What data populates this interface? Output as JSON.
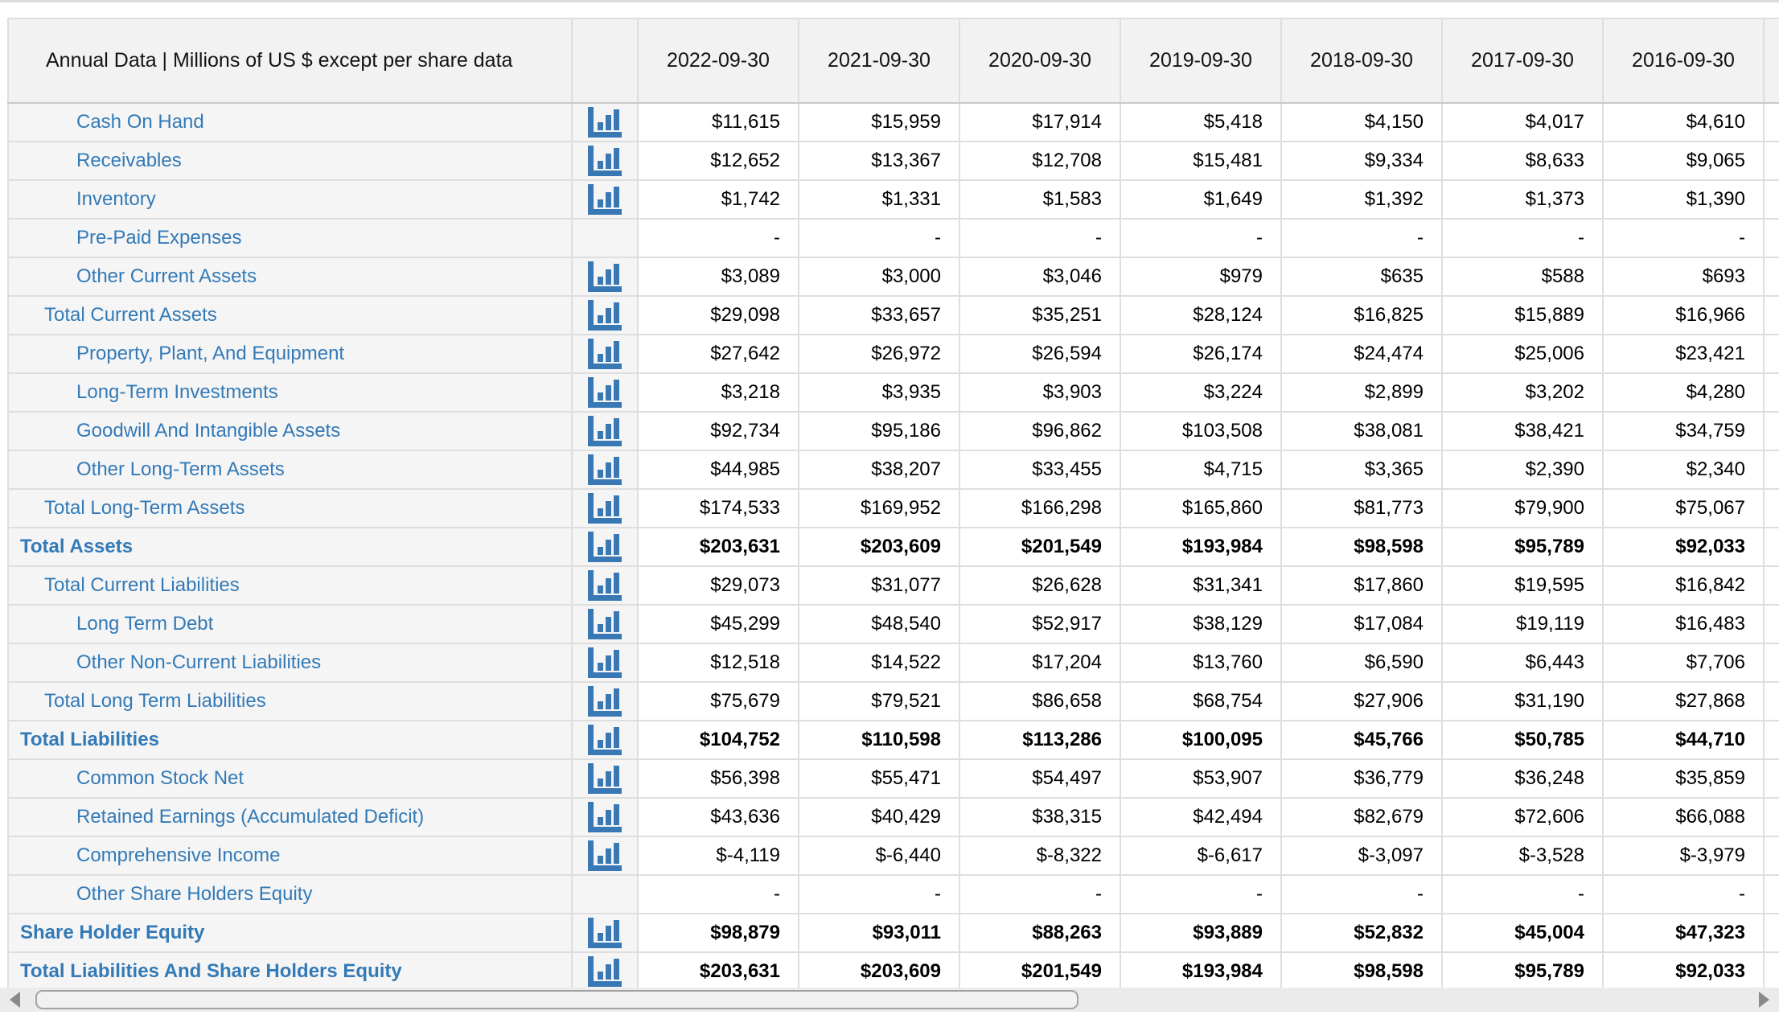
{
  "table": {
    "corner_header": "Annual Data | Millions of US $ except per share data",
    "columns": [
      "2022-09-30",
      "2021-09-30",
      "2020-09-30",
      "2019-09-30",
      "2018-09-30",
      "2017-09-30",
      "2016-09-30"
    ],
    "rows": [
      {
        "label": "Cash On Hand",
        "indent": 2,
        "bold": false,
        "icon": true,
        "values": [
          "$11,615",
          "$15,959",
          "$17,914",
          "$5,418",
          "$4,150",
          "$4,017",
          "$4,610"
        ]
      },
      {
        "label": "Receivables",
        "indent": 2,
        "bold": false,
        "icon": true,
        "values": [
          "$12,652",
          "$13,367",
          "$12,708",
          "$15,481",
          "$9,334",
          "$8,633",
          "$9,065"
        ]
      },
      {
        "label": "Inventory",
        "indent": 2,
        "bold": false,
        "icon": true,
        "values": [
          "$1,742",
          "$1,331",
          "$1,583",
          "$1,649",
          "$1,392",
          "$1,373",
          "$1,390"
        ]
      },
      {
        "label": "Pre-Paid Expenses",
        "indent": 2,
        "bold": false,
        "icon": false,
        "values": [
          "-",
          "-",
          "-",
          "-",
          "-",
          "-",
          "-"
        ]
      },
      {
        "label": "Other Current Assets",
        "indent": 2,
        "bold": false,
        "icon": true,
        "values": [
          "$3,089",
          "$3,000",
          "$3,046",
          "$979",
          "$635",
          "$588",
          "$693"
        ]
      },
      {
        "label": "Total Current Assets",
        "indent": 1,
        "bold": false,
        "icon": true,
        "values": [
          "$29,098",
          "$33,657",
          "$35,251",
          "$28,124",
          "$16,825",
          "$15,889",
          "$16,966"
        ]
      },
      {
        "label": "Property, Plant, And Equipment",
        "indent": 2,
        "bold": false,
        "icon": true,
        "values": [
          "$27,642",
          "$26,972",
          "$26,594",
          "$26,174",
          "$24,474",
          "$25,006",
          "$23,421"
        ]
      },
      {
        "label": "Long-Term Investments",
        "indent": 2,
        "bold": false,
        "icon": true,
        "values": [
          "$3,218",
          "$3,935",
          "$3,903",
          "$3,224",
          "$2,899",
          "$3,202",
          "$4,280"
        ]
      },
      {
        "label": "Goodwill And Intangible Assets",
        "indent": 2,
        "bold": false,
        "icon": true,
        "values": [
          "$92,734",
          "$95,186",
          "$96,862",
          "$103,508",
          "$38,081",
          "$38,421",
          "$34,759"
        ]
      },
      {
        "label": "Other Long-Term Assets",
        "indent": 2,
        "bold": false,
        "icon": true,
        "values": [
          "$44,985",
          "$38,207",
          "$33,455",
          "$4,715",
          "$3,365",
          "$2,390",
          "$2,340"
        ]
      },
      {
        "label": "Total Long-Term Assets",
        "indent": 1,
        "bold": false,
        "icon": true,
        "values": [
          "$174,533",
          "$169,952",
          "$166,298",
          "$165,860",
          "$81,773",
          "$79,900",
          "$75,067"
        ]
      },
      {
        "label": "Total Assets",
        "indent": 0,
        "bold": true,
        "icon": true,
        "values": [
          "$203,631",
          "$203,609",
          "$201,549",
          "$193,984",
          "$98,598",
          "$95,789",
          "$92,033"
        ]
      },
      {
        "label": "Total Current Liabilities",
        "indent": 1,
        "bold": false,
        "icon": true,
        "values": [
          "$29,073",
          "$31,077",
          "$26,628",
          "$31,341",
          "$17,860",
          "$19,595",
          "$16,842"
        ]
      },
      {
        "label": "Long Term Debt",
        "indent": 2,
        "bold": false,
        "icon": true,
        "values": [
          "$45,299",
          "$48,540",
          "$52,917",
          "$38,129",
          "$17,084",
          "$19,119",
          "$16,483"
        ]
      },
      {
        "label": "Other Non-Current Liabilities",
        "indent": 2,
        "bold": false,
        "icon": true,
        "values": [
          "$12,518",
          "$14,522",
          "$17,204",
          "$13,760",
          "$6,590",
          "$6,443",
          "$7,706"
        ]
      },
      {
        "label": "Total Long Term Liabilities",
        "indent": 1,
        "bold": false,
        "icon": true,
        "values": [
          "$75,679",
          "$79,521",
          "$86,658",
          "$68,754",
          "$27,906",
          "$31,190",
          "$27,868"
        ]
      },
      {
        "label": "Total Liabilities",
        "indent": 0,
        "bold": true,
        "icon": true,
        "values": [
          "$104,752",
          "$110,598",
          "$113,286",
          "$100,095",
          "$45,766",
          "$50,785",
          "$44,710"
        ]
      },
      {
        "label": "Common Stock Net",
        "indent": 2,
        "bold": false,
        "icon": true,
        "values": [
          "$56,398",
          "$55,471",
          "$54,497",
          "$53,907",
          "$36,779",
          "$36,248",
          "$35,859"
        ]
      },
      {
        "label": "Retained Earnings (Accumulated Deficit)",
        "indent": 2,
        "bold": false,
        "icon": true,
        "values": [
          "$43,636",
          "$40,429",
          "$38,315",
          "$42,494",
          "$82,679",
          "$72,606",
          "$66,088"
        ]
      },
      {
        "label": "Comprehensive Income",
        "indent": 2,
        "bold": false,
        "icon": true,
        "values": [
          "$-4,119",
          "$-6,440",
          "$-8,322",
          "$-6,617",
          "$-3,097",
          "$-3,528",
          "$-3,979"
        ]
      },
      {
        "label": "Other Share Holders Equity",
        "indent": 2,
        "bold": false,
        "icon": false,
        "values": [
          "-",
          "-",
          "-",
          "-",
          "-",
          "-",
          "-"
        ]
      },
      {
        "label": "Share Holder Equity",
        "indent": 0,
        "bold": true,
        "icon": true,
        "values": [
          "$98,879",
          "$93,011",
          "$88,263",
          "$93,889",
          "$52,832",
          "$45,004",
          "$47,323"
        ]
      },
      {
        "label": "Total Liabilities And Share Holders Equity",
        "indent": 0,
        "bold": true,
        "icon": true,
        "values": [
          "$203,631",
          "$203,609",
          "$201,549",
          "$193,984",
          "$98,598",
          "$95,789",
          "$92,033"
        ]
      }
    ]
  },
  "icons": {
    "row_chart_icon": "bar-chart-icon",
    "scroll_left": "left-arrow-icon",
    "scroll_right": "right-arrow-icon"
  },
  "colors": {
    "link_blue": "#337ab7",
    "icon_blue": "#3878b4",
    "header_bg": "#f2f2f2",
    "label_bg": "#f5f5f5",
    "cell_border": "#dedede",
    "value_text": "#000000",
    "top_strip": "#dcdcdc",
    "scroll_track": "#ebebeb",
    "scroll_thumb": "#f1f1f1",
    "scroll_thumb_border": "#a2a2a2",
    "scroll_arrow": "#8a8a8a"
  }
}
